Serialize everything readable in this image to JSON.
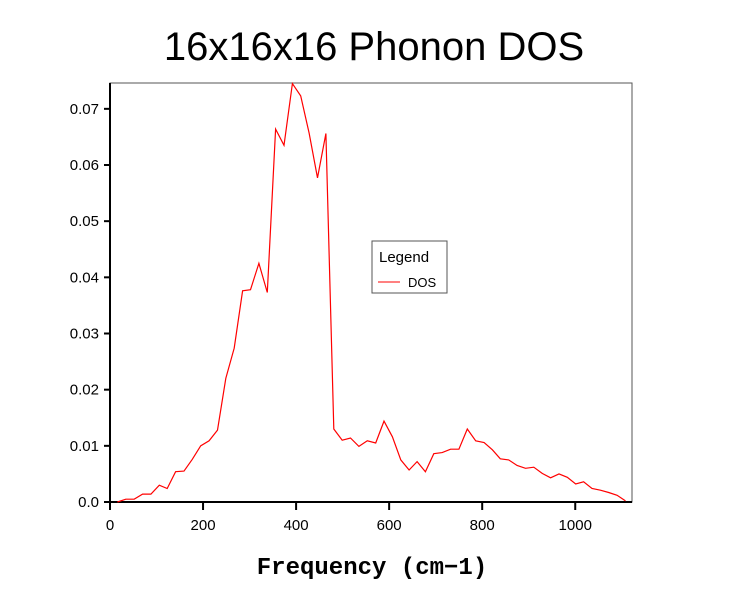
{
  "chart_data": {
    "type": "line",
    "title": "16x16x16 Phonon DOS",
    "xlabel": "Frequency (cm−1)",
    "ylabel": "",
    "xlim": [
      0,
      1122
    ],
    "ylim": [
      0,
      0.0746
    ],
    "x_ticks": [
      "0",
      "200",
      "400",
      "600",
      "800",
      "1000"
    ],
    "x_tick_values": [
      0,
      200,
      400,
      600,
      800,
      1000
    ],
    "y_ticks": [
      "0.0",
      "0.01",
      "0.02",
      "0.03",
      "0.04",
      "0.05",
      "0.06",
      "0.07"
    ],
    "y_tick_values": [
      0,
      0.01,
      0.02,
      0.03,
      0.04,
      0.05,
      0.06,
      0.07
    ],
    "grid": false,
    "legend": {
      "title": "Legend",
      "placement": "center"
    },
    "series": [
      {
        "name": "DOS",
        "color": "#ff0000",
        "x": [
          16,
          34,
          52,
          70,
          88,
          106,
          123,
          141,
          159,
          177,
          195,
          213,
          231,
          249,
          267,
          285,
          302,
          320,
          338,
          356,
          374,
          392,
          410,
          428,
          446,
          464,
          481,
          499,
          517,
          535,
          553,
          571,
          589,
          607,
          625,
          643,
          660,
          678,
          696,
          714,
          732,
          750,
          768,
          786,
          804,
          822,
          839,
          857,
          875,
          893,
          911,
          929,
          947,
          965,
          983,
          1001,
          1018,
          1036,
          1054,
          1072,
          1090,
          1108
        ],
        "y": [
          0.0,
          0.0005,
          0.0005,
          0.0014,
          0.0014,
          0.003,
          0.0024,
          0.0054,
          0.0055,
          0.0076,
          0.01,
          0.0109,
          0.0128,
          0.022,
          0.0274,
          0.0376,
          0.0378,
          0.0425,
          0.0373,
          0.0664,
          0.0635,
          0.0745,
          0.0723,
          0.0657,
          0.0577,
          0.0656,
          0.013,
          0.011,
          0.0114,
          0.0099,
          0.0109,
          0.0105,
          0.0144,
          0.0116,
          0.0075,
          0.0057,
          0.0072,
          0.0054,
          0.0086,
          0.0088,
          0.0094,
          0.0094,
          0.013,
          0.0109,
          0.0106,
          0.0093,
          0.0077,
          0.0075,
          0.0065,
          0.006,
          0.0062,
          0.0051,
          0.0043,
          0.005,
          0.0044,
          0.0032,
          0.0036,
          0.0024,
          0.0021,
          0.0017,
          0.0012,
          0.0002
        ]
      }
    ]
  }
}
